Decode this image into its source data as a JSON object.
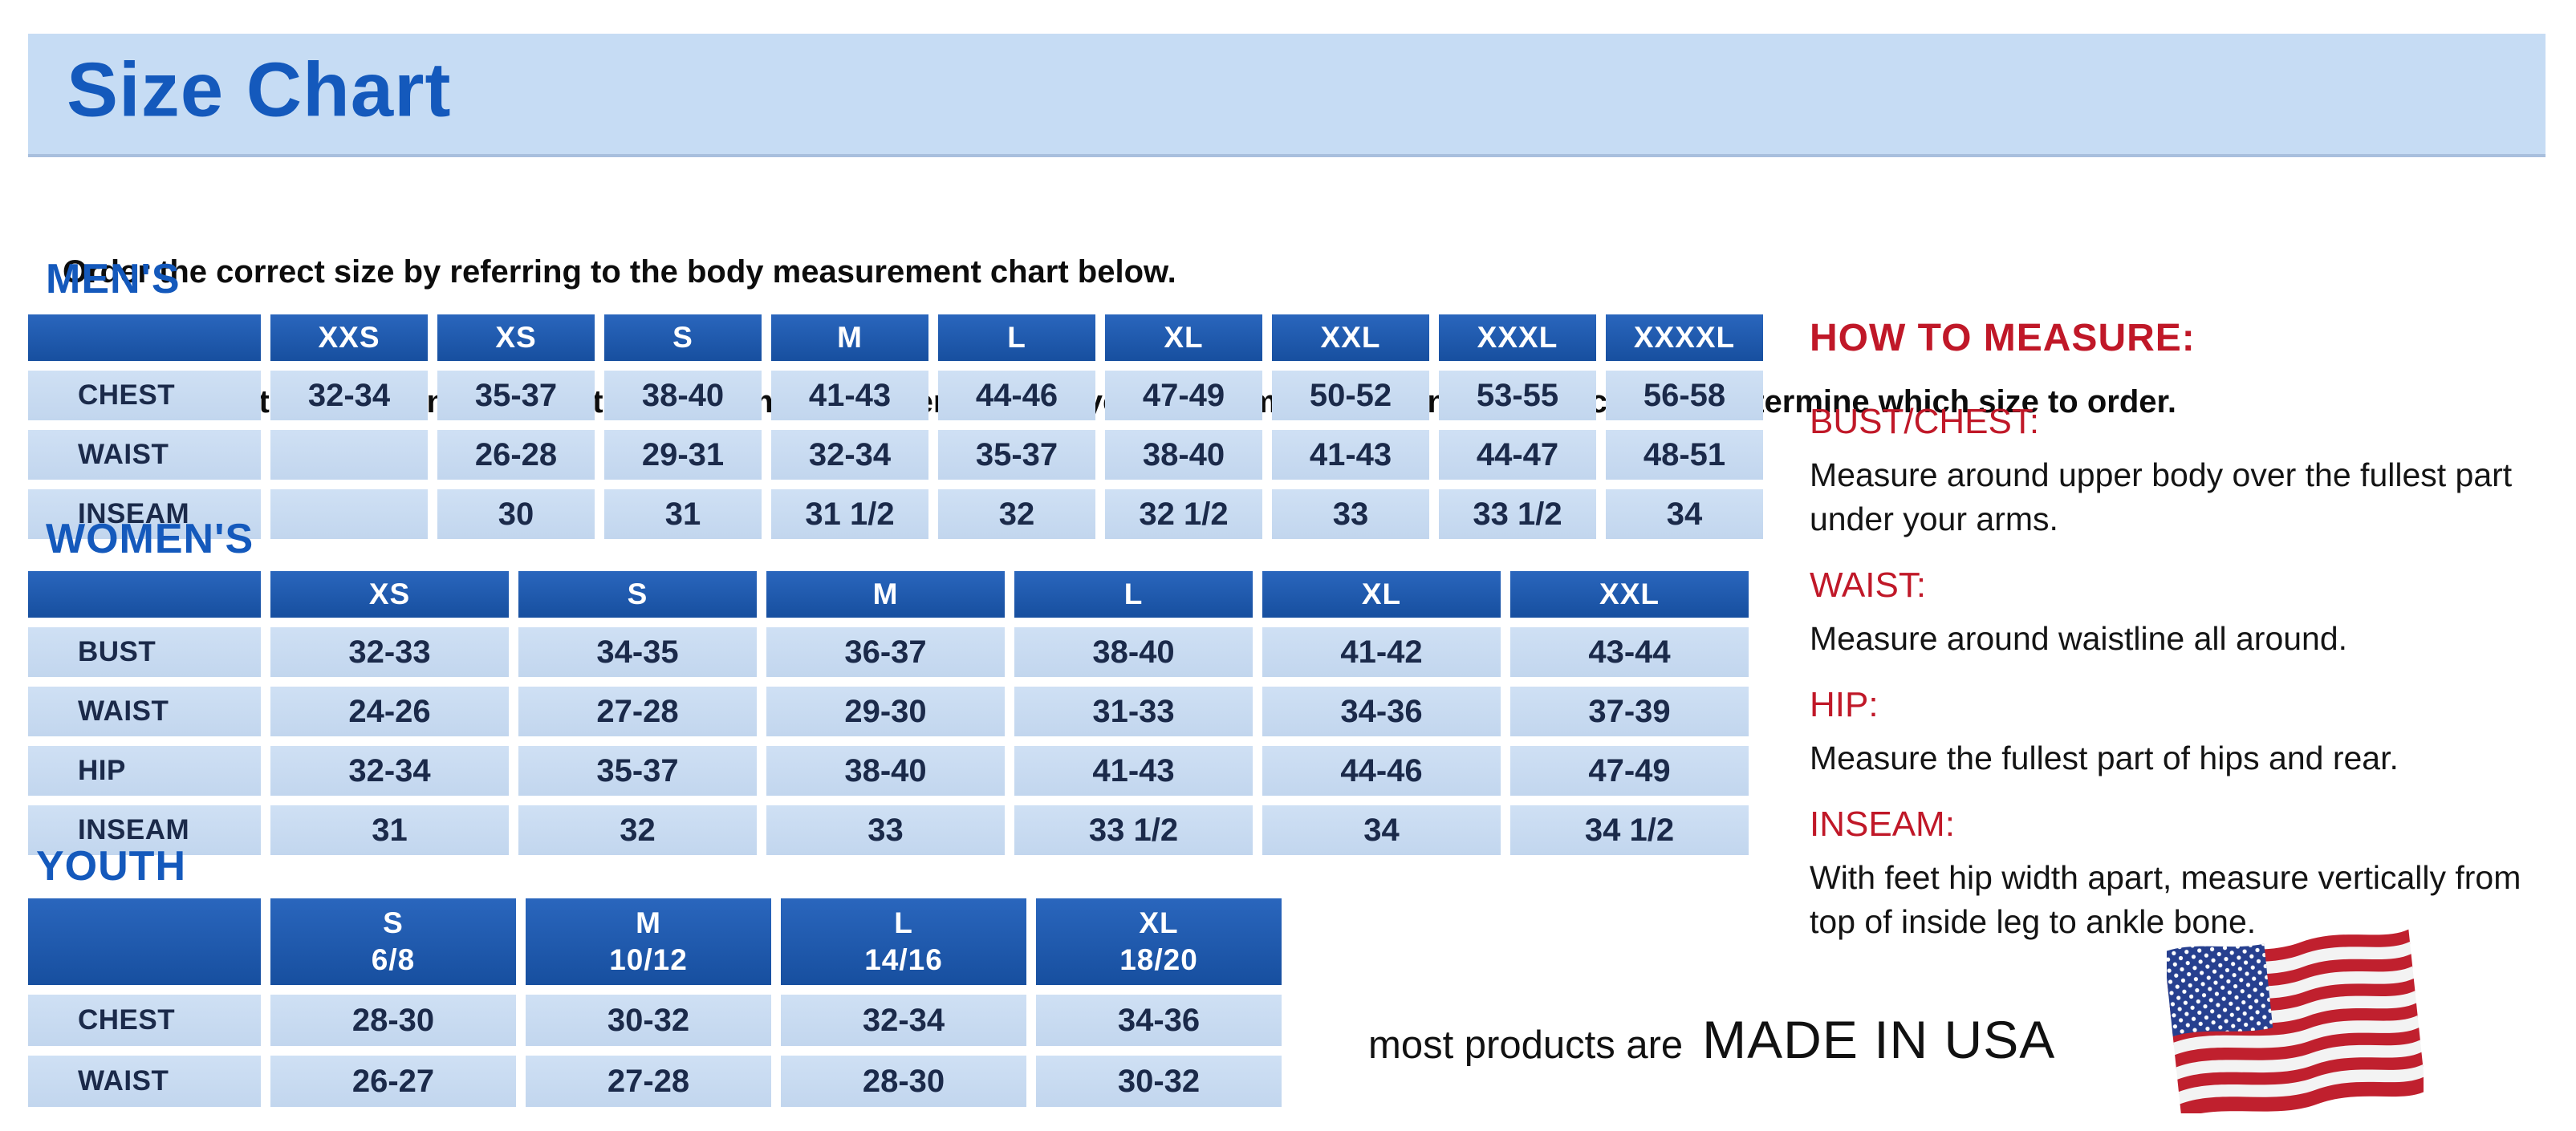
{
  "page": {
    "title": "Size Chart",
    "intro_line1": "Order the correct size by referring to the body measurement chart below.",
    "intro_line2": "Measurements shown on size chart are body measurements.  Find your body measurements on the chart to determine which size to order."
  },
  "colors": {
    "banner_bg": "#c6dcf4",
    "heading_blue": "#1459bc",
    "table_header_blue": "#1b55ac",
    "cell_light_blue": "#c9dcf3",
    "cell_text_navy": "#1b2a4a",
    "accent_red": "#c01828"
  },
  "tables": {
    "mens": {
      "title": "MEN'S",
      "columns": [
        "XXS",
        "XS",
        "S",
        "M",
        "L",
        "XL",
        "XXL",
        "XXXL",
        "XXXXL"
      ],
      "rows": [
        {
          "label": "CHEST",
          "values": [
            "32-34",
            "35-37",
            "38-40",
            "41-43",
            "44-46",
            "47-49",
            "50-52",
            "53-55",
            "56-58"
          ]
        },
        {
          "label": "WAIST",
          "values": [
            "",
            "26-28",
            "29-31",
            "32-34",
            "35-37",
            "38-40",
            "41-43",
            "44-47",
            "48-51"
          ]
        },
        {
          "label": "INSEAM",
          "values": [
            "",
            "30",
            "31",
            "31 1/2",
            "32",
            "32 1/2",
            "33",
            "33 1/2",
            "34"
          ]
        }
      ]
    },
    "womens": {
      "title": "WOMEN'S",
      "columns": [
        "XS",
        "S",
        "M",
        "L",
        "XL",
        "XXL"
      ],
      "rows": [
        {
          "label": "BUST",
          "values": [
            "32-33",
            "34-35",
            "36-37",
            "38-40",
            "41-42",
            "43-44"
          ]
        },
        {
          "label": "WAIST",
          "values": [
            "24-26",
            "27-28",
            "29-30",
            "31-33",
            "34-36",
            "37-39"
          ]
        },
        {
          "label": "HIP",
          "values": [
            "32-34",
            "35-37",
            "38-40",
            "41-43",
            "44-46",
            "47-49"
          ]
        },
        {
          "label": "INSEAM",
          "values": [
            "31",
            "32",
            "33",
            "33 1/2",
            "34",
            "34 1/2"
          ]
        }
      ]
    },
    "youth": {
      "title": "YOUTH",
      "columns": [
        "S\n6/8",
        "M\n10/12",
        "L\n14/16",
        "XL\n18/20"
      ],
      "rows": [
        {
          "label": "CHEST",
          "values": [
            "28-30",
            "30-32",
            "32-34",
            "34-36"
          ]
        },
        {
          "label": "WAIST",
          "values": [
            "26-27",
            "27-28",
            "28-30",
            "30-32"
          ]
        }
      ]
    }
  },
  "how_to_measure": {
    "heading": "HOW TO MEASURE:",
    "items": [
      {
        "label": "BUST/CHEST:",
        "text": "Measure around upper body over the fullest part under your arms."
      },
      {
        "label": "WAIST:",
        "text": "Measure around waistline all around."
      },
      {
        "label": "HIP:",
        "text": "Measure the fullest part of hips and rear."
      },
      {
        "label": "INSEAM:",
        "text": "With feet hip width apart, measure vertically from top of inside leg to ankle bone."
      }
    ]
  },
  "footer": {
    "prefix": "most products are",
    "made_in": "MADE IN USA",
    "flag_icon": "us-flag-icon"
  }
}
